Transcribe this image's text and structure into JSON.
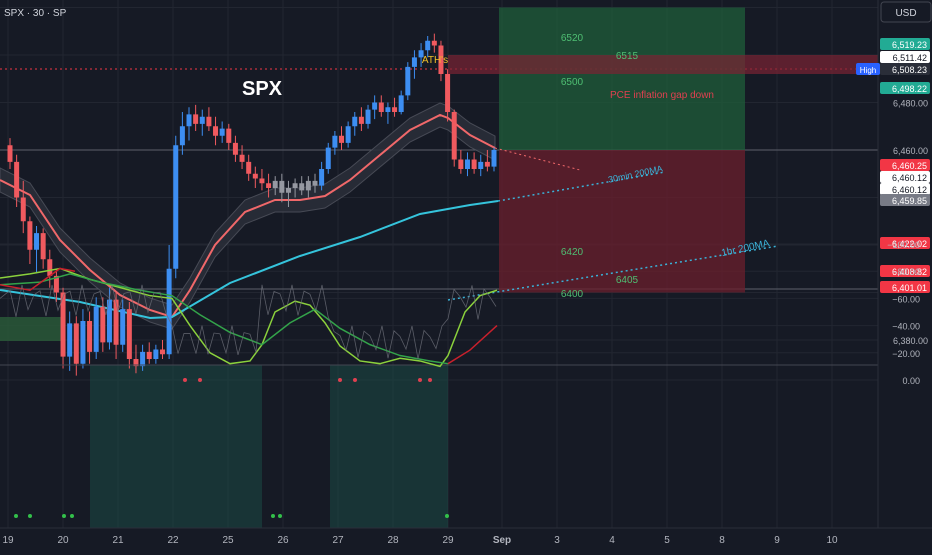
{
  "header": {
    "symbol": "SPX · 30 · SP",
    "currency": "USD"
  },
  "annotations": {
    "title": "SPX",
    "ath": "ATH's",
    "event": "PCE inflation gap down",
    "ma30": "30min 200MA",
    "ma1h": "1hr 200MA"
  },
  "levels": [
    {
      "label": "6520",
      "value": 6520
    },
    {
      "label": "6515",
      "value": 6515
    },
    {
      "label": "6500",
      "value": 6500
    },
    {
      "label": "6420",
      "value": 6420
    },
    {
      "label": "6405",
      "value": 6405
    },
    {
      "label": "6400",
      "value": 6400
    }
  ],
  "price_axis": {
    "ticks": [
      "6,480.00",
      "6,460.00",
      "6,440.00",
      "6,380.00"
    ],
    "labels": [
      {
        "text": "6,519.23",
        "value": 6519.23,
        "color": "#22ab94"
      },
      {
        "text": "6,511.42",
        "value": 6511.42,
        "color": "#ffffff"
      },
      {
        "text": "6,508.23",
        "value": 6508.23,
        "color": "#2a2e39",
        "tag": "High"
      },
      {
        "text": "6,498.22",
        "value": 6498.22,
        "color": "#22ab94"
      },
      {
        "text": "6,460.25",
        "value": 6460.25,
        "color": "#f23645"
      },
      {
        "text": "6,460.12",
        "value": 6460.12,
        "color": "#ffffff"
      },
      {
        "text": "6,460.12",
        "value": 6460.12,
        "color": "#ffffff"
      },
      {
        "text": "6,459.85",
        "value": 6459.85,
        "color": "#787b86"
      },
      {
        "text": "6,422.02",
        "value": 6422.02,
        "color": "#f23645"
      },
      {
        "text": "6,408.82",
        "value": 6408.82,
        "color": "#f23645"
      },
      {
        "text": "6,401.01",
        "value": 6401.01,
        "color": "#f23645"
      }
    ]
  },
  "osc_axis": {
    "ticks": [
      "0.00",
      "−20.00",
      "−40.00",
      "−60.00",
      "−80.00",
      "−100.00"
    ]
  },
  "time_axis": {
    "ticks": [
      "19",
      "20",
      "21",
      "22",
      "25",
      "26",
      "27",
      "28",
      "29",
      "Sep",
      "3",
      "4",
      "5",
      "8",
      "9",
      "10"
    ]
  },
  "colors": {
    "up": "#3d8ef2",
    "down": "#f05a5f",
    "neutral": "#9598a1",
    "ema": "#f0686a",
    "ma200": "#35c4dc",
    "target_zone": "#1f5e3a",
    "stop_zone": "#6b1f2c",
    "osc_green": "#8bd13c",
    "osc_red": "#c8202c",
    "osc_zone": "#1b4a46"
  },
  "chart_data": {
    "type": "candlestick",
    "symbol": "SPX",
    "timeframe": "30",
    "x": [
      "19",
      "20",
      "21",
      "22",
      "25",
      "26",
      "27",
      "28",
      "29",
      "Sep",
      "3",
      "4",
      "5",
      "8",
      "9",
      "10"
    ],
    "ylim": [
      6360,
      6530
    ],
    "candles": [
      {
        "o": 6462,
        "h": 6465,
        "l": 6452,
        "c": 6455
      },
      {
        "o": 6455,
        "h": 6458,
        "l": 6436,
        "c": 6440
      },
      {
        "o": 6440,
        "h": 6447,
        "l": 6425,
        "c": 6430
      },
      {
        "o": 6430,
        "h": 6432,
        "l": 6412,
        "c": 6418
      },
      {
        "o": 6418,
        "h": 6428,
        "l": 6408,
        "c": 6425
      },
      {
        "o": 6425,
        "h": 6427,
        "l": 6410,
        "c": 6414
      },
      {
        "o": 6414,
        "h": 6418,
        "l": 6402,
        "c": 6407
      },
      {
        "o": 6407,
        "h": 6410,
        "l": 6396,
        "c": 6400
      },
      {
        "o": 6400,
        "h": 6402,
        "l": 6368,
        "c": 6373
      },
      {
        "o": 6373,
        "h": 6392,
        "l": 6367,
        "c": 6387
      },
      {
        "o": 6387,
        "h": 6390,
        "l": 6365,
        "c": 6370
      },
      {
        "o": 6370,
        "h": 6393,
        "l": 6368,
        "c": 6388
      },
      {
        "o": 6388,
        "h": 6392,
        "l": 6370,
        "c": 6375
      },
      {
        "o": 6375,
        "h": 6398,
        "l": 6372,
        "c": 6394
      },
      {
        "o": 6394,
        "h": 6398,
        "l": 6375,
        "c": 6379
      },
      {
        "o": 6379,
        "h": 6402,
        "l": 6376,
        "c": 6397
      },
      {
        "o": 6397,
        "h": 6400,
        "l": 6372,
        "c": 6378
      },
      {
        "o": 6378,
        "h": 6397,
        "l": 6375,
        "c": 6393
      },
      {
        "o": 6393,
        "h": 6396,
        "l": 6368,
        "c": 6372
      },
      {
        "o": 6372,
        "h": 6378,
        "l": 6366,
        "c": 6369
      },
      {
        "o": 6369,
        "h": 6378,
        "l": 6367,
        "c": 6375
      },
      {
        "o": 6375,
        "h": 6379,
        "l": 6370,
        "c": 6372
      },
      {
        "o": 6372,
        "h": 6378,
        "l": 6370,
        "c": 6376
      },
      {
        "o": 6376,
        "h": 6380,
        "l": 6372,
        "c": 6374
      },
      {
        "o": 6374,
        "h": 6420,
        "l": 6372,
        "c": 6410
      },
      {
        "o": 6410,
        "h": 6466,
        "l": 6406,
        "c": 6462
      },
      {
        "o": 6462,
        "h": 6476,
        "l": 6458,
        "c": 6470
      },
      {
        "o": 6470,
        "h": 6478,
        "l": 6464,
        "c": 6475
      },
      {
        "o": 6475,
        "h": 6479,
        "l": 6468,
        "c": 6471
      },
      {
        "o": 6471,
        "h": 6477,
        "l": 6466,
        "c": 6474
      },
      {
        "o": 6474,
        "h": 6478,
        "l": 6468,
        "c": 6470
      },
      {
        "o": 6470,
        "h": 6474,
        "l": 6462,
        "c": 6466
      },
      {
        "o": 6466,
        "h": 6472,
        "l": 6463,
        "c": 6469
      },
      {
        "o": 6469,
        "h": 6471,
        "l": 6460,
        "c": 6463
      },
      {
        "o": 6463,
        "h": 6466,
        "l": 6455,
        "c": 6458
      },
      {
        "o": 6458,
        "h": 6462,
        "l": 6452,
        "c": 6455
      },
      {
        "o": 6455,
        "h": 6458,
        "l": 6447,
        "c": 6450
      },
      {
        "o": 6450,
        "h": 6453,
        "l": 6444,
        "c": 6448
      },
      {
        "o": 6448,
        "h": 6452,
        "l": 6443,
        "c": 6446
      },
      {
        "o": 6446,
        "h": 6450,
        "l": 6440,
        "c": 6444
      },
      {
        "o": 6444,
        "h": 6449,
        "l": 6441,
        "c": 6447
      },
      {
        "o": 6447,
        "h": 6450,
        "l": 6438,
        "c": 6442
      },
      {
        "o": 6442,
        "h": 6447,
        "l": 6436,
        "c": 6444
      },
      {
        "o": 6444,
        "h": 6448,
        "l": 6440,
        "c": 6446
      },
      {
        "o": 6446,
        "h": 6449,
        "l": 6441,
        "c": 6443
      },
      {
        "o": 6443,
        "h": 6449,
        "l": 6440,
        "c": 6447
      },
      {
        "o": 6447,
        "h": 6450,
        "l": 6442,
        "c": 6445
      },
      {
        "o": 6445,
        "h": 6455,
        "l": 6443,
        "c": 6452
      },
      {
        "o": 6452,
        "h": 6463,
        "l": 6450,
        "c": 6461
      },
      {
        "o": 6461,
        "h": 6468,
        "l": 6458,
        "c": 6466
      },
      {
        "o": 6466,
        "h": 6470,
        "l": 6460,
        "c": 6463
      },
      {
        "o": 6463,
        "h": 6472,
        "l": 6461,
        "c": 6470
      },
      {
        "o": 6470,
        "h": 6476,
        "l": 6466,
        "c": 6474
      },
      {
        "o": 6474,
        "h": 6478,
        "l": 6468,
        "c": 6471
      },
      {
        "o": 6471,
        "h": 6479,
        "l": 6469,
        "c": 6477
      },
      {
        "o": 6477,
        "h": 6483,
        "l": 6473,
        "c": 6480
      },
      {
        "o": 6480,
        "h": 6483,
        "l": 6474,
        "c": 6476
      },
      {
        "o": 6476,
        "h": 6480,
        "l": 6471,
        "c": 6478
      },
      {
        "o": 6478,
        "h": 6482,
        "l": 6474,
        "c": 6476
      },
      {
        "o": 6476,
        "h": 6485,
        "l": 6475,
        "c": 6483
      },
      {
        "o": 6483,
        "h": 6497,
        "l": 6481,
        "c": 6495
      },
      {
        "o": 6495,
        "h": 6502,
        "l": 6490,
        "c": 6499
      },
      {
        "o": 6499,
        "h": 6505,
        "l": 6495,
        "c": 6502
      },
      {
        "o": 6502,
        "h": 6508,
        "l": 6499,
        "c": 6506
      },
      {
        "o": 6506,
        "h": 6509,
        "l": 6501,
        "c": 6504
      },
      {
        "o": 6504,
        "h": 6506,
        "l": 6489,
        "c": 6492
      },
      {
        "o": 6492,
        "h": 6494,
        "l": 6472,
        "c": 6476
      },
      {
        "o": 6476,
        "h": 6477,
        "l": 6453,
        "c": 6456
      },
      {
        "o": 6456,
        "h": 6460,
        "l": 6450,
        "c": 6452
      },
      {
        "o": 6452,
        "h": 6459,
        "l": 6449,
        "c": 6456
      },
      {
        "o": 6456,
        "h": 6459,
        "l": 6450,
        "c": 6452
      },
      {
        "o": 6452,
        "h": 6458,
        "l": 6449,
        "c": 6455
      },
      {
        "o": 6455,
        "h": 6460,
        "l": 6451,
        "c": 6453
      },
      {
        "o": 6453,
        "h": 6461,
        "l": 6451,
        "c": 6460
      }
    ]
  }
}
